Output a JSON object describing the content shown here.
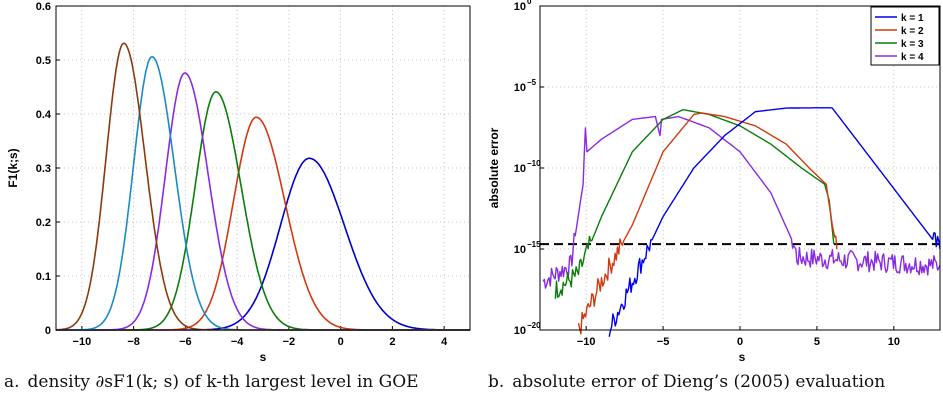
{
  "captions": {
    "a_label": "a.",
    "a_text": "density ∂sF1(k; s) of k-th largest level in GOE",
    "b_label": "b.",
    "b_text": "absolute error of Dieng’s (2005) evaluation"
  },
  "chart_data": [
    {
      "type": "line",
      "title": "",
      "xlabel": "s",
      "ylabel": "F1(k;s)",
      "xlim": [
        -11,
        5
      ],
      "ylim": [
        0,
        0.6
      ],
      "xticks": [
        -10,
        -8,
        -6,
        -4,
        -2,
        0,
        2,
        4
      ],
      "yticks": [
        0,
        0.1,
        0.2,
        0.3,
        0.4,
        0.5,
        0.6
      ],
      "xtick_labels": [
        "−10",
        "−8",
        "−6",
        "−4",
        "−2",
        "0",
        "2",
        "4"
      ],
      "ytick_labels": [
        "0",
        "0.1",
        "0.2",
        "0.3",
        "0.4",
        "0.5",
        "0.6"
      ],
      "grid": true,
      "series": [
        {
          "color": "#0000cc",
          "peak_x": -1.21,
          "peak_y": 0.318,
          "left_sd": 1.12,
          "right_sd": 1.36
        },
        {
          "color": "#d03a10",
          "peak_x": -3.26,
          "peak_y": 0.394,
          "left_sd": 0.88,
          "right_sd": 1.1
        },
        {
          "color": "#0a7d0a",
          "peak_x": -4.82,
          "peak_y": 0.441,
          "left_sd": 0.8,
          "right_sd": 0.97
        },
        {
          "color": "#8a2be2",
          "peak_x": -6.02,
          "peak_y": 0.476,
          "left_sd": 0.75,
          "right_sd": 0.9
        },
        {
          "color": "#1a8bc6",
          "peak_x": -7.29,
          "peak_y": 0.506,
          "left_sd": 0.71,
          "right_sd": 0.86
        },
        {
          "color": "#8b3a0e",
          "peak_x": -8.38,
          "peak_y": 0.531,
          "left_sd": 0.68,
          "right_sd": 0.82
        }
      ]
    },
    {
      "type": "line",
      "title": "",
      "xlabel": "s",
      "ylabel": "absolute error",
      "yscale": "log",
      "xlim": [
        -13,
        13
      ],
      "ylim": [
        1e-20,
        1
      ],
      "xticks": [
        -10,
        -5,
        0,
        5,
        10
      ],
      "xtick_labels": [
        "−10",
        "−5",
        "0",
        "5",
        "10"
      ],
      "yticks_exp": [
        0,
        -5,
        -10,
        -15,
        -20
      ],
      "ytick_base": "10",
      "grid": true,
      "legend": {
        "position": "top-right",
        "labels": [
          "k = 1",
          "k = 2",
          "k = 3",
          "k = 4"
        ]
      },
      "reference_line": {
        "y": 2e-15,
        "style": "dashed"
      },
      "series": [
        {
          "name": "k = 1",
          "color": "#0000ee",
          "x": [
            -8.5,
            -7,
            -5,
            -3,
            -1,
            1,
            3,
            5,
            5.9,
            6,
            13
          ],
          "y": [
            1e-20,
            1e-17,
            1e-13,
            1e-10,
            1e-08,
            3e-07,
            5e-07,
            5.2e-07,
            5.2e-07,
            5e-07,
            1e-15
          ]
        },
        {
          "name": "k = 2",
          "color": "#d03a10",
          "x": [
            -10.5,
            -9,
            -7,
            -5,
            -3,
            -2.5,
            -1,
            1,
            3,
            4.5,
            5.6,
            6,
            6.3
          ],
          "y": [
            1e-20,
            1e-17,
            3e-14,
            1e-09,
            2e-07,
            2.5e-07,
            1.5e-07,
            4e-08,
            3e-09,
            1e-10,
            1e-11,
            3e-14,
            1e-15
          ]
        },
        {
          "name": "k = 3",
          "color": "#0a7d0a",
          "x": [
            -12,
            -11.2,
            -10.5,
            -9,
            -7,
            -5,
            -3.7,
            -2,
            0,
            2,
            4,
            5.5,
            5.8,
            6.1
          ],
          "y": [
            3e-18,
            1e-17,
            3e-17,
            1e-13,
            1e-09,
            1e-07,
            4e-07,
            2e-07,
            4e-08,
            3e-09,
            1e-10,
            1e-11,
            1e-12,
            2e-15
          ]
        },
        {
          "name": "k = 4",
          "color": "#8a2be2",
          "x": [
            -12.8,
            -11,
            -10.2,
            -10.05,
            -9.95,
            -9,
            -7,
            -5.5,
            -5.2,
            -5.1,
            -4,
            -2,
            0,
            2,
            3.5,
            3.7,
            13
          ],
          "y": [
            1e-17,
            1e-16,
            1e-11,
            3e-08,
            1e-09,
            6e-09,
            1e-07,
            1.5e-07,
            1e-08,
            1e-07,
            1.5e-07,
            3e-08,
            1e-09,
            3e-12,
            2e-15,
            3e-16,
            1e-16
          ]
        }
      ]
    }
  ]
}
